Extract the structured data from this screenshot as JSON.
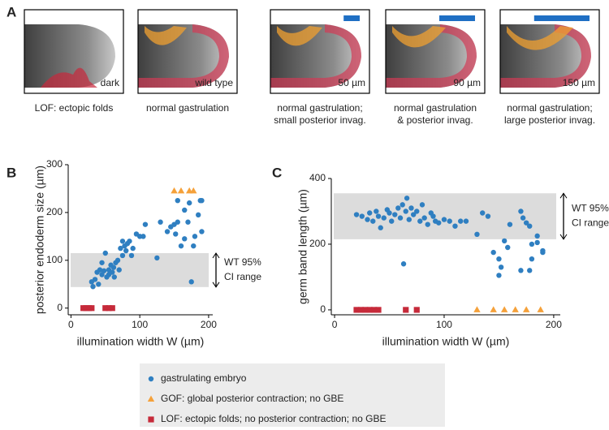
{
  "panel_labels": [
    "A",
    "B",
    "C"
  ],
  "panel_a": {
    "images": [
      {
        "label": "dark",
        "caption": [
          "LOF: ectopic folds"
        ]
      },
      {
        "label": "wild type",
        "caption": [
          "normal gastrulation"
        ]
      },
      {
        "label": "50 µm",
        "caption": [
          "normal gastrulation;",
          "small posterior invag."
        ]
      },
      {
        "label": "90 µm",
        "caption": [
          "normal gastrulation",
          "& posterior invag."
        ]
      },
      {
        "label": "150 µm",
        "caption": [
          "normal gastrulation;",
          "large posterior invag."
        ]
      }
    ]
  },
  "chart_data": [
    {
      "type": "scatter",
      "x_label": "illumination width W (µm)",
      "y_label": "posterior endoderm size (µm)",
      "xlim": [
        -4,
        206
      ],
      "ylim": [
        -14,
        300
      ],
      "xticks": [
        0,
        100,
        200
      ],
      "yticks": [
        0,
        100,
        200,
        300
      ],
      "band": [
        44,
        115
      ],
      "band_label": [
        "WT 95%",
        "CI range"
      ],
      "series": [
        {
          "name": "gastrulating embryo",
          "color": "#2f7fc1",
          "marker": "circle",
          "x": [
            30,
            32,
            35,
            38,
            40,
            42,
            45,
            45,
            48,
            50,
            52,
            55,
            55,
            58,
            60,
            62,
            63,
            65,
            68,
            70,
            72,
            75,
            75,
            78,
            80,
            82,
            85,
            88,
            90,
            95,
            100,
            105,
            108,
            125,
            130,
            140,
            145,
            150,
            152,
            155,
            160,
            165,
            170,
            172,
            175,
            178,
            180,
            185,
            188,
            190,
            190,
            155,
            165
          ],
          "values": [
            55,
            45,
            60,
            75,
            50,
            80,
            95,
            70,
            78,
            115,
            65,
            80,
            70,
            90,
            75,
            85,
            65,
            95,
            100,
            80,
            125,
            140,
            110,
            130,
            120,
            135,
            140,
            110,
            125,
            155,
            150,
            150,
            175,
            105,
            180,
            160,
            170,
            175,
            155,
            180,
            130,
            145,
            180,
            220,
            55,
            130,
            150,
            195,
            225,
            225,
            160,
            225,
            205
          ]
        },
        {
          "name": "GOF: global posterior contraction; no GBE",
          "color": "#f5a13a",
          "marker": "triangle",
          "x": [
            150,
            160,
            172,
            178
          ],
          "values": [
            245,
            245,
            245,
            245
          ]
        },
        {
          "name": "LOF: ectopic folds; no posterior contraction; no GBE",
          "color": "#c62a3a",
          "marker": "square",
          "x": [
            18,
            22,
            26,
            30,
            50,
            55,
            60
          ],
          "values": [
            0,
            0,
            0,
            0,
            0,
            0,
            0
          ]
        }
      ]
    },
    {
      "type": "scatter",
      "x_label": "illumination width W (µm)",
      "y_label": "germ band length (µm)",
      "xlim": [
        -3,
        206
      ],
      "ylim": [
        -15,
        400
      ],
      "xticks": [
        0,
        100,
        200
      ],
      "yticks": [
        0,
        200,
        400
      ],
      "band": [
        215,
        355
      ],
      "band_label": [
        "WT 95%",
        "CI range"
      ],
      "series": [
        {
          "color": "#2f7fc1",
          "marker": "circle",
          "x": [
            20,
            25,
            30,
            32,
            35,
            38,
            40,
            42,
            45,
            48,
            50,
            52,
            55,
            58,
            60,
            62,
            63,
            65,
            66,
            68,
            70,
            72,
            75,
            78,
            80,
            82,
            85,
            88,
            90,
            92,
            95,
            100,
            105,
            110,
            115,
            120,
            130,
            135,
            140,
            145,
            150,
            150,
            152,
            155,
            158,
            160,
            170,
            172,
            175,
            178,
            180,
            180,
            185,
            190,
            190,
            170,
            178,
            185
          ],
          "values": [
            290,
            285,
            275,
            295,
            270,
            300,
            285,
            250,
            280,
            305,
            295,
            270,
            290,
            310,
            280,
            320,
            140,
            300,
            340,
            275,
            310,
            290,
            300,
            270,
            320,
            280,
            260,
            295,
            285,
            270,
            265,
            275,
            270,
            255,
            270,
            270,
            230,
            295,
            285,
            175,
            155,
            105,
            130,
            210,
            190,
            260,
            300,
            280,
            265,
            120,
            200,
            155,
            225,
            180,
            175,
            120,
            255,
            205
          ]
        },
        {
          "color": "#f5a13a",
          "marker": "triangle",
          "x": [
            130,
            145,
            155,
            165,
            175,
            188
          ],
          "values": [
            0,
            0,
            0,
            0,
            0,
            0
          ]
        },
        {
          "color": "#c62a3a",
          "marker": "square",
          "x": [
            20,
            24,
            28,
            32,
            36,
            40,
            65,
            75
          ],
          "values": [
            0,
            0,
            0,
            0,
            0,
            0,
            0,
            0
          ]
        }
      ]
    }
  ]
}
